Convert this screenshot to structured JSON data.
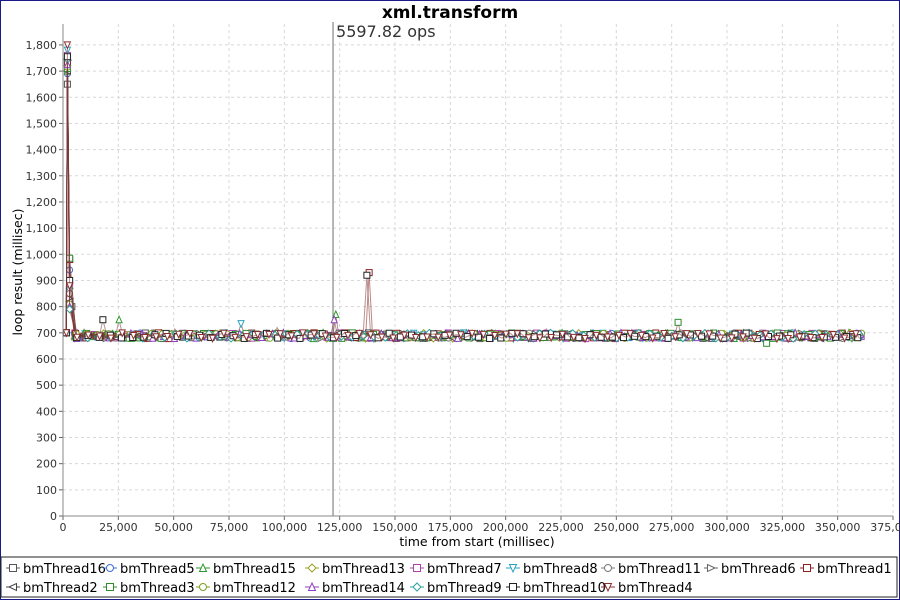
{
  "chart_data": {
    "type": "line",
    "title": "xml.transform",
    "xlabel": "time from start (millisec)",
    "ylabel": "loop result (millisec)",
    "xlim": [
      0,
      375000
    ],
    "ylim": [
      0,
      1880
    ],
    "x_ticks": [
      "0",
      "25,000",
      "50,000",
      "75,000",
      "100,000",
      "125,000",
      "150,000",
      "175,000",
      "200,000",
      "225,000",
      "250,000",
      "275,000",
      "300,000",
      "325,000",
      "350,000",
      "375,000"
    ],
    "y_ticks": [
      "0",
      "100",
      "200",
      "300",
      "400",
      "500",
      "600",
      "700",
      "800",
      "900",
      "1,000",
      "1,100",
      "1,200",
      "1,300",
      "1,400",
      "1,500",
      "1,600",
      "1,700",
      "1,800"
    ],
    "grid": true,
    "legend_position": "bottom",
    "annotation": {
      "text": "5597.82 ops",
      "x": 122000
    },
    "series": [
      {
        "name": "bmThread16",
        "marker": "square",
        "color": "#555555",
        "spikes": [
          [
            2000,
            1650
          ],
          [
            3000,
            980
          ],
          [
            4000,
            800
          ]
        ]
      },
      {
        "name": "bmThread5",
        "marker": "circle",
        "color": "#3a6fd8",
        "spikes": [
          [
            2000,
            1690
          ],
          [
            3000,
            940
          ],
          [
            50000,
            715
          ]
        ]
      },
      {
        "name": "bmThread15",
        "marker": "triangle-up",
        "color": "#2e9a2e",
        "spikes": [
          [
            2000,
            1700
          ],
          [
            3000,
            900
          ],
          [
            25000,
            750
          ],
          [
            123000,
            770
          ],
          [
            218000,
            715
          ]
        ]
      },
      {
        "name": "bmThread13",
        "marker": "diamond",
        "color": "#9aa020",
        "spikes": [
          [
            2000,
            1720
          ],
          [
            3000,
            870
          ]
        ]
      },
      {
        "name": "bmThread7",
        "marker": "square",
        "color": "#b040b0",
        "spikes": [
          [
            2000,
            1760
          ],
          [
            3000,
            890
          ]
        ]
      },
      {
        "name": "bmThread8",
        "marker": "triangle-down",
        "color": "#2aa0c0",
        "spikes": [
          [
            2000,
            1780
          ],
          [
            3000,
            860
          ],
          [
            80000,
            735
          ]
        ]
      },
      {
        "name": "bmThread11",
        "marker": "circle",
        "color": "#777777",
        "spikes": [
          [
            2000,
            1730
          ],
          [
            3000,
            850
          ]
        ]
      },
      {
        "name": "bmThread6",
        "marker": "triangle-right",
        "color": "#666666",
        "spikes": [
          [
            2000,
            1740
          ],
          [
            3000,
            830
          ]
        ]
      },
      {
        "name": "bmThread1",
        "marker": "square",
        "color": "#8b2020",
        "spikes": [
          [
            2000,
            1735
          ],
          [
            3000,
            980
          ],
          [
            138000,
            930
          ]
        ]
      },
      {
        "name": "bmThread2",
        "marker": "triangle-left",
        "color": "#444444",
        "spikes": [
          [
            2000,
            1700
          ],
          [
            3000,
            820
          ]
        ]
      },
      {
        "name": "bmThread3",
        "marker": "square",
        "color": "#2e8b2e",
        "spikes": [
          [
            2000,
            1710
          ],
          [
            3000,
            985
          ],
          [
            278000,
            740
          ],
          [
            318000,
            660
          ]
        ]
      },
      {
        "name": "bmThread12",
        "marker": "circle",
        "color": "#7aa020",
        "spikes": [
          [
            2000,
            1715
          ],
          [
            3000,
            810
          ],
          [
            97000,
            720
          ]
        ]
      },
      {
        "name": "bmThread14",
        "marker": "triangle-up",
        "color": "#9040c0",
        "spikes": [
          [
            2000,
            1725
          ],
          [
            3000,
            800
          ],
          [
            122000,
            750
          ]
        ]
      },
      {
        "name": "bmThread9",
        "marker": "diamond",
        "color": "#2aa0a0",
        "spikes": [
          [
            2000,
            1745
          ],
          [
            3000,
            790
          ]
        ]
      },
      {
        "name": "bmThread10",
        "marker": "square",
        "color": "#222222",
        "spikes": [
          [
            2000,
            1755
          ],
          [
            3000,
            900
          ],
          [
            18000,
            750
          ],
          [
            138000,
            920
          ]
        ]
      },
      {
        "name": "bmThread4",
        "marker": "triangle-down",
        "color": "#8b3030",
        "spikes": [
          [
            2000,
            1800
          ],
          [
            3000,
            880
          ],
          [
            150000,
            715
          ]
        ]
      }
    ],
    "steady_level": 690,
    "x_end": 361000
  }
}
